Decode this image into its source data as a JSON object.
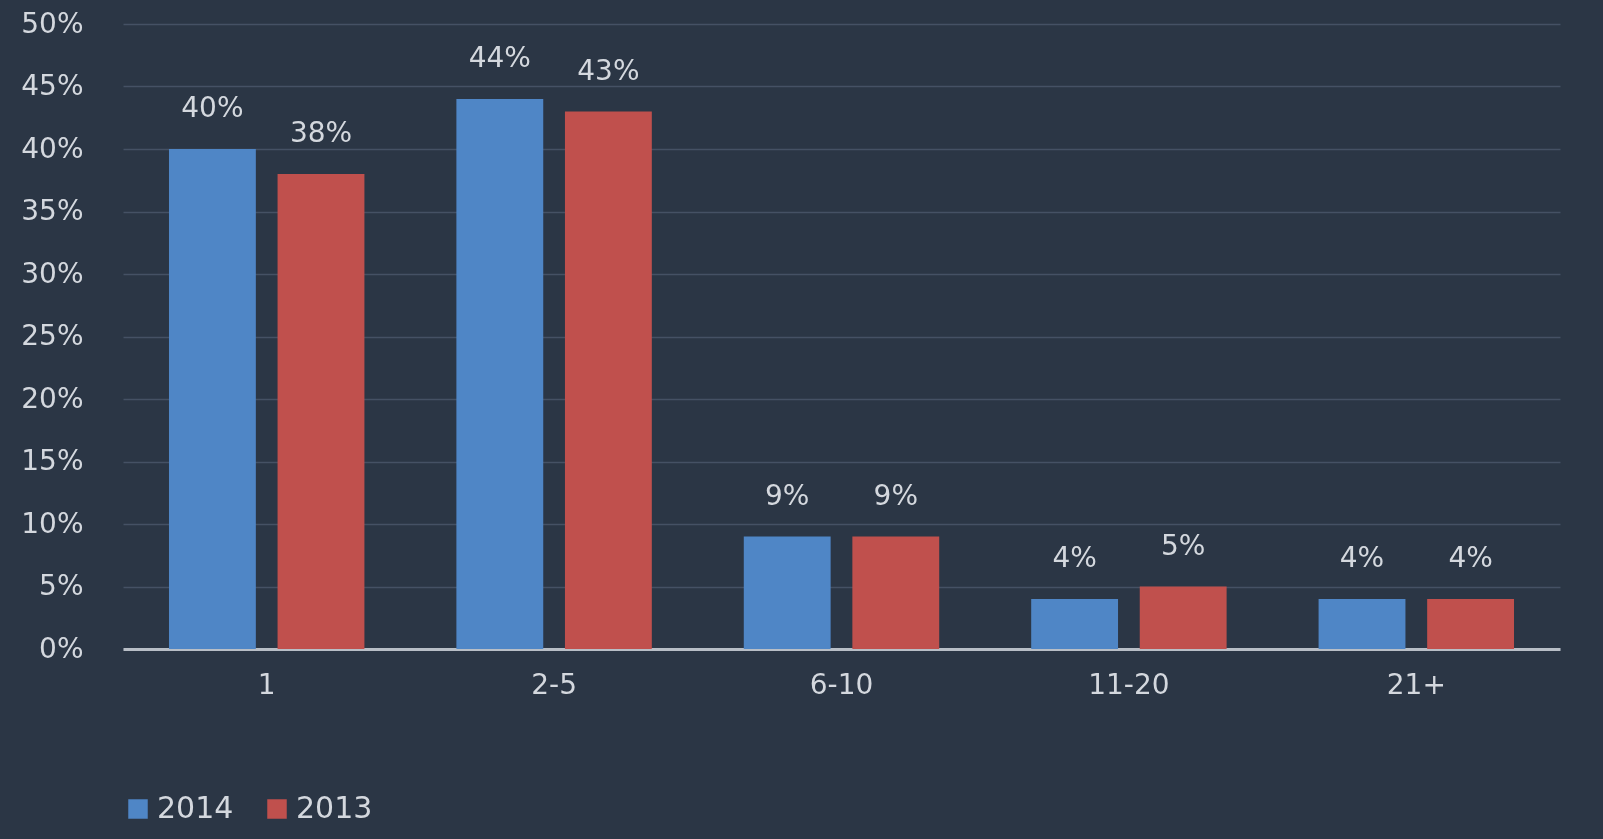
{
  "chart_data": {
    "type": "bar",
    "categories": [
      "1",
      "2-5",
      "6-10",
      "11-20",
      "21+"
    ],
    "series": [
      {
        "name": "2014",
        "color": "#4f86c6",
        "values": [
          40,
          44,
          9,
          4,
          4
        ],
        "value_labels": [
          "40%",
          "44%",
          "9%",
          "4%",
          "4%"
        ]
      },
      {
        "name": "2013",
        "color": "#c0504d",
        "values": [
          38,
          43,
          9,
          5,
          4
        ],
        "value_labels": [
          "38%",
          "43%",
          "9%",
          "5%",
          "4%"
        ]
      }
    ],
    "ylim": [
      0,
      50
    ],
    "yticks": [
      {
        "value": 0,
        "label": "0%"
      },
      {
        "value": 5,
        "label": "5%"
      },
      {
        "value": 10,
        "label": "10%"
      },
      {
        "value": 15,
        "label": "15%"
      },
      {
        "value": 20,
        "label": "20%"
      },
      {
        "value": 25,
        "label": "25%"
      },
      {
        "value": 30,
        "label": "30%"
      },
      {
        "value": 35,
        "label": "35%"
      },
      {
        "value": 40,
        "label": "40%"
      },
      {
        "value": 45,
        "label": "45%"
      },
      {
        "value": 50,
        "label": "50%"
      }
    ],
    "grid": "y",
    "legend": "bottom"
  }
}
